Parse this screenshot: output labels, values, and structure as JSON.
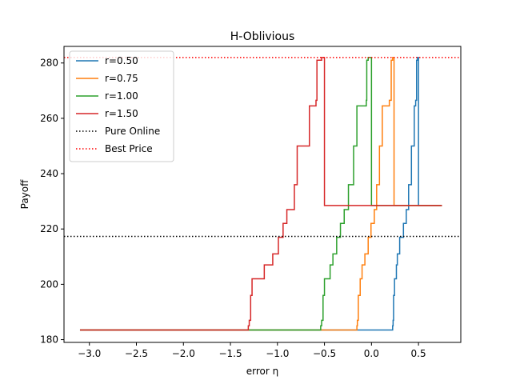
{
  "chart_data": {
    "type": "line",
    "title": "H-Oblivious",
    "xlabel": "error η",
    "ylabel": "Payoff",
    "xlim": [
      -3.27,
      0.95
    ],
    "ylim": [
      179.0,
      286.0
    ],
    "xticks": [
      -3.0,
      -2.5,
      -2.0,
      -1.5,
      -1.0,
      -0.5,
      0.0,
      0.5
    ],
    "xtick_labels": [
      "−3.0",
      "−2.5",
      "−2.0",
      "−1.5",
      "−1.0",
      "−0.5",
      "0.0",
      "0.5"
    ],
    "yticks": [
      180,
      200,
      220,
      240,
      260,
      280
    ],
    "ytick_labels": [
      "180",
      "200",
      "220",
      "240",
      "260",
      "280"
    ],
    "grid": false,
    "legend_position": "top-left",
    "series": [
      {
        "name": "r=0.50",
        "color": "#1f77b4",
        "style": "solid",
        "x": [
          -3.1,
          0.225,
          0.225,
          0.23,
          0.23,
          0.235,
          0.235,
          0.245,
          0.245,
          0.265,
          0.265,
          0.275,
          0.275,
          0.3,
          0.3,
          0.34,
          0.34,
          0.37,
          0.37,
          0.395,
          0.395,
          0.425,
          0.425,
          0.455,
          0.455,
          0.47,
          0.47,
          0.48,
          0.48,
          0.49,
          0.49,
          0.5,
          0.5,
          0.75
        ],
        "y": [
          183.5,
          183.5,
          185.0,
          185.0,
          187.0,
          187.0,
          196.0,
          196.0,
          202.0,
          202.0,
          207.0,
          207.0,
          211.0,
          211.0,
          217.0,
          217.0,
          222.0,
          222.0,
          227.0,
          227.0,
          236.0,
          236.0,
          250.0,
          250.0,
          264.5,
          264.5,
          266.5,
          266.5,
          281.0,
          281.0,
          282.0,
          282.0,
          228.5,
          228.5
        ]
      },
      {
        "name": "r=0.75",
        "color": "#ff7f0e",
        "style": "solid",
        "x": [
          -3.1,
          -0.155,
          -0.155,
          -0.15,
          -0.15,
          -0.14,
          -0.14,
          -0.12,
          -0.12,
          -0.1,
          -0.1,
          -0.07,
          -0.07,
          -0.035,
          -0.035,
          -0.005,
          -0.005,
          0.03,
          0.03,
          0.055,
          0.055,
          0.085,
          0.085,
          0.115,
          0.115,
          0.19,
          0.19,
          0.21,
          0.21,
          0.225,
          0.225,
          0.24,
          0.24,
          0.75
        ],
        "y": [
          183.5,
          183.5,
          185.0,
          185.0,
          187.0,
          187.0,
          196.0,
          196.0,
          202.0,
          202.0,
          207.0,
          207.0,
          211.0,
          211.0,
          217.0,
          217.0,
          222.0,
          222.0,
          227.0,
          227.0,
          236.0,
          236.0,
          250.0,
          250.0,
          264.5,
          264.5,
          266.5,
          266.5,
          281.0,
          281.0,
          282.0,
          282.0,
          228.5,
          228.5
        ]
      },
      {
        "name": "r=1.00",
        "color": "#2ca02c",
        "style": "solid",
        "x": [
          -3.1,
          -0.54,
          -0.54,
          -0.53,
          -0.53,
          -0.515,
          -0.515,
          -0.5,
          -0.5,
          -0.44,
          -0.44,
          -0.41,
          -0.41,
          -0.37,
          -0.37,
          -0.33,
          -0.33,
          -0.29,
          -0.29,
          -0.245,
          -0.245,
          -0.19,
          -0.19,
          -0.155,
          -0.155,
          -0.055,
          -0.055,
          -0.05,
          -0.05,
          -0.035,
          -0.035,
          0.0,
          0.0,
          0.75
        ],
        "y": [
          183.5,
          183.5,
          185.0,
          185.0,
          187.0,
          187.0,
          196.0,
          196.0,
          202.0,
          202.0,
          207.0,
          207.0,
          211.0,
          211.0,
          217.0,
          217.0,
          222.0,
          222.0,
          227.0,
          227.0,
          236.0,
          236.0,
          250.0,
          250.0,
          264.5,
          264.5,
          266.5,
          266.5,
          281.0,
          281.0,
          282.0,
          282.0,
          228.5,
          228.5
        ]
      },
      {
        "name": "r=1.50",
        "color": "#d62728",
        "style": "solid",
        "x": [
          -3.1,
          -1.31,
          -1.31,
          -1.3,
          -1.3,
          -1.285,
          -1.285,
          -1.27,
          -1.27,
          -1.14,
          -1.14,
          -1.05,
          -1.05,
          -0.99,
          -0.99,
          -0.94,
          -0.94,
          -0.9,
          -0.9,
          -0.82,
          -0.82,
          -0.79,
          -0.79,
          -0.66,
          -0.66,
          -0.59,
          -0.59,
          -0.58,
          -0.58,
          -0.53,
          -0.53,
          -0.5,
          -0.5,
          0.75
        ],
        "y": [
          183.5,
          183.5,
          185.0,
          185.0,
          187.0,
          187.0,
          196.0,
          196.0,
          202.0,
          202.0,
          207.0,
          207.0,
          211.0,
          211.0,
          217.0,
          217.0,
          222.0,
          222.0,
          227.0,
          227.0,
          236.0,
          236.0,
          250.0,
          250.0,
          264.5,
          264.5,
          266.5,
          266.5,
          281.0,
          281.0,
          282.0,
          282.0,
          228.5,
          228.5
        ]
      },
      {
        "name": "Pure Online",
        "color": "#000000",
        "style": "dotted",
        "hline": 217.3
      },
      {
        "name": "Best Price",
        "color": "#ff0000",
        "style": "dotted",
        "hline": 282.0
      }
    ]
  }
}
